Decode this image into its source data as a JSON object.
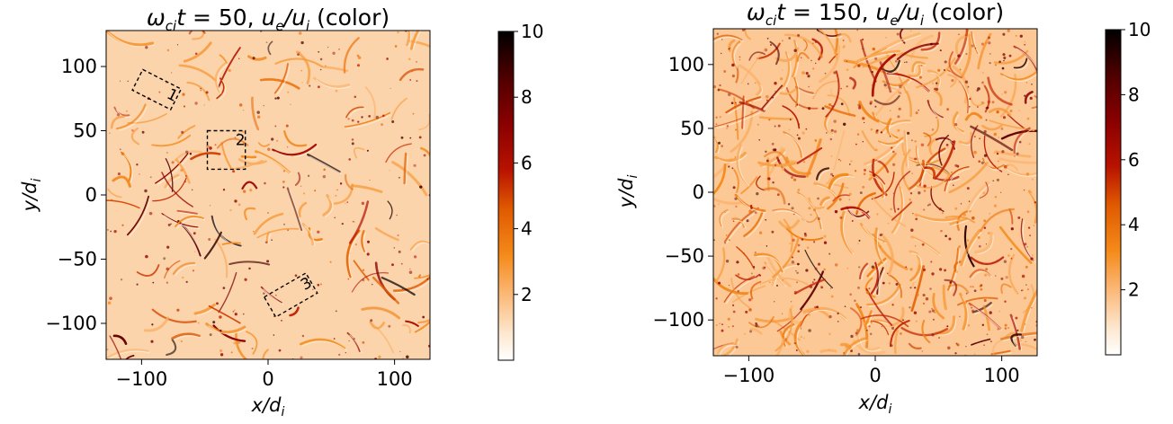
{
  "chart_data": [
    {
      "type": "heatmap",
      "title": "ωcit = 50, ue/ui (color)",
      "title_parts": {
        "omega": "ω",
        "sub1": "ci",
        "t": "t",
        "eq": " = 50, ",
        "u1": "u",
        "sub2": "e",
        "slash": "/",
        "u2": "u",
        "sub3": "i",
        "tail": " (color)"
      },
      "xlabel": "x/di",
      "xlabel_parts": {
        "main": "x/d",
        "sub": "i"
      },
      "ylabel": "y/di",
      "ylabel_parts": {
        "main": "y/d",
        "sub": "i"
      },
      "xlim": [
        -128,
        128
      ],
      "ylim": [
        -128,
        128
      ],
      "xticks": [
        -100,
        0,
        100
      ],
      "xtick_labels": [
        "−100",
        "0",
        "100"
      ],
      "yticks": [
        -100,
        -50,
        0,
        50,
        100
      ],
      "ytick_labels": [
        "−100",
        "−50",
        "0",
        "50",
        "100"
      ],
      "colorbar": {
        "min": 0,
        "max": 10,
        "ticks": [
          2,
          4,
          6,
          8,
          10
        ],
        "tick_labels": [
          "2",
          "4",
          "6",
          "8",
          "10"
        ],
        "colormap": "gist_heat_r"
      },
      "background_level": 1.3,
      "regions": [
        {
          "label": "1",
          "center": [
            -88,
            82
          ],
          "width": 34,
          "height": 18,
          "angle": -27
        },
        {
          "label": "2",
          "center": [
            -33,
            35
          ],
          "width": 30,
          "height": 30,
          "angle": 0
        },
        {
          "label": "3",
          "center": [
            18,
            -78
          ],
          "width": 38,
          "height": 18,
          "angle": 30
        }
      ],
      "seed": 11,
      "structure_count": 130
    },
    {
      "type": "heatmap",
      "title": "ωcit = 150, ue/ui (color)",
      "title_parts": {
        "omega": "ω",
        "sub1": "ci",
        "t": "t",
        "eq": " = 150, ",
        "u1": "u",
        "sub2": "e",
        "slash": "/",
        "u2": "u",
        "sub3": "i",
        "tail": " (color)"
      },
      "xlabel": "x/di",
      "xlabel_parts": {
        "main": "x/d",
        "sub": "i"
      },
      "ylabel": "y/di",
      "ylabel_parts": {
        "main": "y/d",
        "sub": "i"
      },
      "xlim": [
        -128,
        128
      ],
      "ylim": [
        -128,
        128
      ],
      "xticks": [
        -100,
        0,
        100
      ],
      "xtick_labels": [
        "−100",
        "0",
        "100"
      ],
      "yticks": [
        -100,
        -50,
        0,
        50,
        100
      ],
      "ytick_labels": [
        "−100",
        "−50",
        "0",
        "50",
        "100"
      ],
      "colorbar": {
        "min": 0,
        "max": 10,
        "ticks": [
          2,
          4,
          6,
          8,
          10
        ],
        "tick_labels": [
          "2",
          "4",
          "6",
          "8",
          "10"
        ],
        "colormap": "gist_heat_r"
      },
      "background_level": 1.6,
      "regions": [],
      "seed": 29,
      "structure_count": 300
    }
  ]
}
